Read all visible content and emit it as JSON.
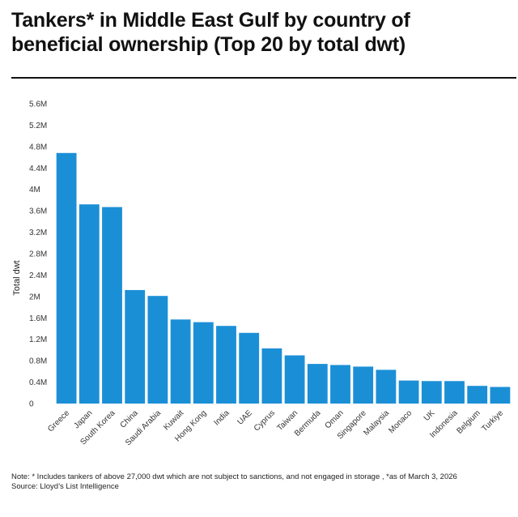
{
  "title": "Tankers* in Middle East Gulf by country of beneficial ownership (Top 20 by total dwt)",
  "note": "Note: * Includes tankers of above 27,000 dwt which are not subject to sanctions, and not engaged in storage , *as of March 3, 2026",
  "source": "Source: Lloyd’s List Intelligence",
  "colors": {
    "bar": "#1b8fd6",
    "rule": "#111111"
  },
  "chart_data": {
    "type": "bar",
    "ylabel": "Total dwt",
    "xlabel": "",
    "ylim": [
      0,
      5600000
    ],
    "grid": false,
    "yticks": [
      {
        "value": 0,
        "label": "0"
      },
      {
        "value": 400000,
        "label": "0.4M"
      },
      {
        "value": 800000,
        "label": "0.8M"
      },
      {
        "value": 1200000,
        "label": "1.2M"
      },
      {
        "value": 1600000,
        "label": "1.6M"
      },
      {
        "value": 2000000,
        "label": "2M"
      },
      {
        "value": 2400000,
        "label": "2.4M"
      },
      {
        "value": 2800000,
        "label": "2.8M"
      },
      {
        "value": 3200000,
        "label": "3.2M"
      },
      {
        "value": 3600000,
        "label": "3.6M"
      },
      {
        "value": 4000000,
        "label": "4M"
      },
      {
        "value": 4400000,
        "label": "4.4M"
      },
      {
        "value": 4800000,
        "label": "4.8M"
      },
      {
        "value": 5200000,
        "label": "5.2M"
      },
      {
        "value": 5600000,
        "label": "5.6M"
      }
    ],
    "categories": [
      "Greece",
      "Japan",
      "South Korea",
      "China",
      "Saudi Arabia",
      "Kuwait",
      "Hong Kong",
      "India",
      "UAE",
      "Cyprus",
      "Taiwan",
      "Bermuda",
      "Oman",
      "Singapore",
      "Malaysia",
      "Monaco",
      "UK",
      "Indonesia",
      "Belgium",
      "Turkiye"
    ],
    "values": [
      4680000,
      3720000,
      3670000,
      2120000,
      2010000,
      1570000,
      1520000,
      1450000,
      1320000,
      1030000,
      900000,
      740000,
      720000,
      690000,
      630000,
      430000,
      420000,
      420000,
      330000,
      310000
    ]
  }
}
